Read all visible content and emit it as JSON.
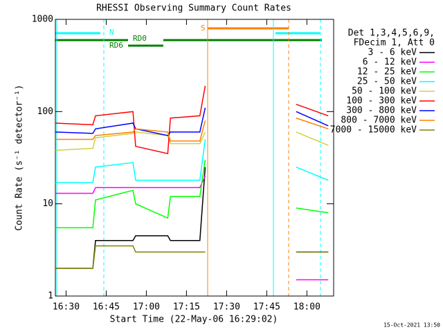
{
  "chart_data": {
    "type": "line",
    "log_y": true,
    "title": "RHESSI Observing Summary Count Rates",
    "x_label": "Start Time (22-May-06 16:29:02)",
    "y_label": "Count Rate (s⁻¹ detector⁻¹)",
    "legend_header": [
      "Det 1,3,4,5,6,9,",
      "FDecim 1, Att 0"
    ],
    "timestamp": "15-Oct-2021 13:50",
    "annotations": [
      "N",
      "S",
      "RD0",
      "RD6"
    ],
    "xlim": [
      "16:26",
      "18:10"
    ],
    "xticks": [
      "16:30",
      "16:45",
      "17:00",
      "17:15",
      "17:30",
      "17:45",
      "18:00"
    ],
    "ylim": [
      1,
      1000
    ],
    "yticks": [
      1,
      10,
      100,
      1000
    ],
    "x": [
      "16:26",
      "16:40",
      "16:41",
      "16:55",
      "16:56",
      "17:08",
      "17:09",
      "17:20",
      "17:22",
      "17:40",
      "17:56",
      "18:08"
    ],
    "series": [
      {
        "name": "3 - 6 keV",
        "color": "#000000",
        "values": [
          2,
          2,
          4,
          4,
          4.5,
          4.5,
          4,
          4,
          25,
          null,
          3,
          3
        ]
      },
      {
        "name": "6 - 12 keV",
        "color": "#ff00ff",
        "values": [
          13,
          13,
          15,
          15,
          15,
          15,
          15,
          15,
          20,
          null,
          1.5,
          1.5
        ]
      },
      {
        "name": "12 - 25 keV",
        "color": "#00ff00",
        "values": [
          5.5,
          5.5,
          11,
          14,
          10,
          7,
          12,
          12,
          30,
          null,
          9,
          8
        ]
      },
      {
        "name": "25 - 50 keV",
        "color": "#00ffff",
        "values": [
          17,
          17,
          25,
          28,
          18,
          18,
          18,
          18,
          50,
          null,
          25,
          18
        ]
      },
      {
        "name": "50 - 100 keV",
        "color": "#d0d040",
        "values": [
          38,
          40,
          52,
          58,
          60,
          55,
          45,
          45,
          60,
          null,
          60,
          43
        ]
      },
      {
        "name": "100 - 300 keV",
        "color": "#ff0000",
        "values": [
          75,
          72,
          90,
          100,
          42,
          35,
          85,
          90,
          190,
          null,
          120,
          90
        ]
      },
      {
        "name": "300 - 800 keV",
        "color": "#0000ff",
        "values": [
          60,
          58,
          65,
          75,
          65,
          55,
          60,
          60,
          110,
          null,
          100,
          70
        ]
      },
      {
        "name": "800 - 7000 keV",
        "color": "#ff8000",
        "values": [
          50,
          50,
          55,
          60,
          65,
          60,
          48,
          48,
          80,
          null,
          85,
          65
        ]
      },
      {
        "name": "7000 - 15000 keV",
        "color": "#808000",
        "values": [
          2,
          2,
          3.5,
          3.5,
          3,
          3,
          3,
          3,
          3,
          null,
          3,
          3
        ]
      }
    ]
  }
}
